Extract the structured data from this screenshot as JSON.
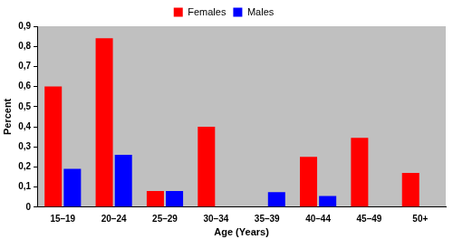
{
  "chart_data": {
    "type": "bar",
    "x_label": "Age (Years)",
    "y_label": "Percent",
    "categories": [
      "15–19",
      "20–24",
      "25–29",
      "30–34",
      "35–39",
      "40–44",
      "45–49",
      "50+"
    ],
    "series": [
      {
        "name": "Females",
        "color": "#ff0000",
        "values": [
          0.6,
          0.84,
          0.08,
          0.4,
          0,
          0.25,
          0.345,
          0.17
        ]
      },
      {
        "name": "Males",
        "color": "#0000ff",
        "values": [
          0.19,
          0.26,
          0.08,
          0,
          0.075,
          0.055,
          0,
          0
        ]
      }
    ],
    "ylim": [
      0,
      0.9
    ],
    "yticks": [
      0,
      {
        "value": 0.1,
        "label": "0,1"
      },
      {
        "value": 0.2,
        "label": "0,2"
      },
      {
        "value": 0.3,
        "label": "0,3"
      },
      {
        "value": 0.4,
        "label": "0,4"
      },
      {
        "value": 0.5,
        "label": "0,5"
      },
      {
        "value": 0.6,
        "label": "0,6"
      },
      {
        "value": 0.7,
        "label": "0,7"
      },
      {
        "value": 0.8,
        "label": "0,8"
      },
      {
        "value": 0.9,
        "label": "0,9"
      }
    ],
    "grid": false,
    "legend": "top"
  }
}
